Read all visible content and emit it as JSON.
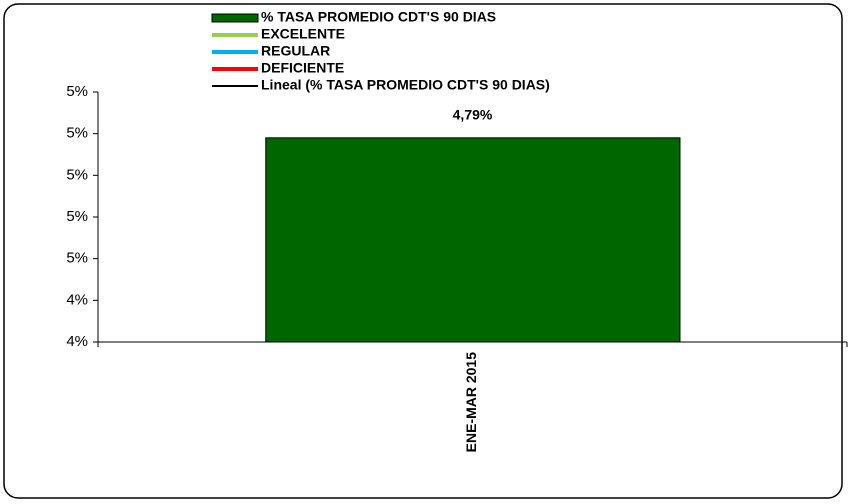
{
  "chart_data": {
    "type": "bar",
    "categories": [
      "ENE-MAR 2015"
    ],
    "series": [
      {
        "name": "% TASA PROMEDIO CDT'S 90 DIAS",
        "color": "#006600",
        "values": [
          4.79
        ],
        "value_labels": [
          "4,79%"
        ]
      }
    ],
    "legend_lines": [
      {
        "name": "EXCELENTE",
        "color": "#92d050"
      },
      {
        "name": "REGULAR",
        "color": "#00b0f0"
      },
      {
        "name": "DEFICIENTE",
        "color": "#ff0000"
      },
      {
        "name": "Lineal (% TASA PROMEDIO CDT'S 90 DIAS)",
        "color": "#000000"
      }
    ],
    "ylim": [
      4.3,
      4.9
    ],
    "yticks": [
      {
        "value": 4.3,
        "label": "4%"
      },
      {
        "value": 4.4,
        "label": "4%"
      },
      {
        "value": 4.5,
        "label": "5%"
      },
      {
        "value": 4.6,
        "label": "5%"
      },
      {
        "value": 4.7,
        "label": "5%"
      },
      {
        "value": 4.8,
        "label": "5%"
      },
      {
        "value": 4.9,
        "label": "5%"
      }
    ],
    "grid": false,
    "legend": "top"
  }
}
